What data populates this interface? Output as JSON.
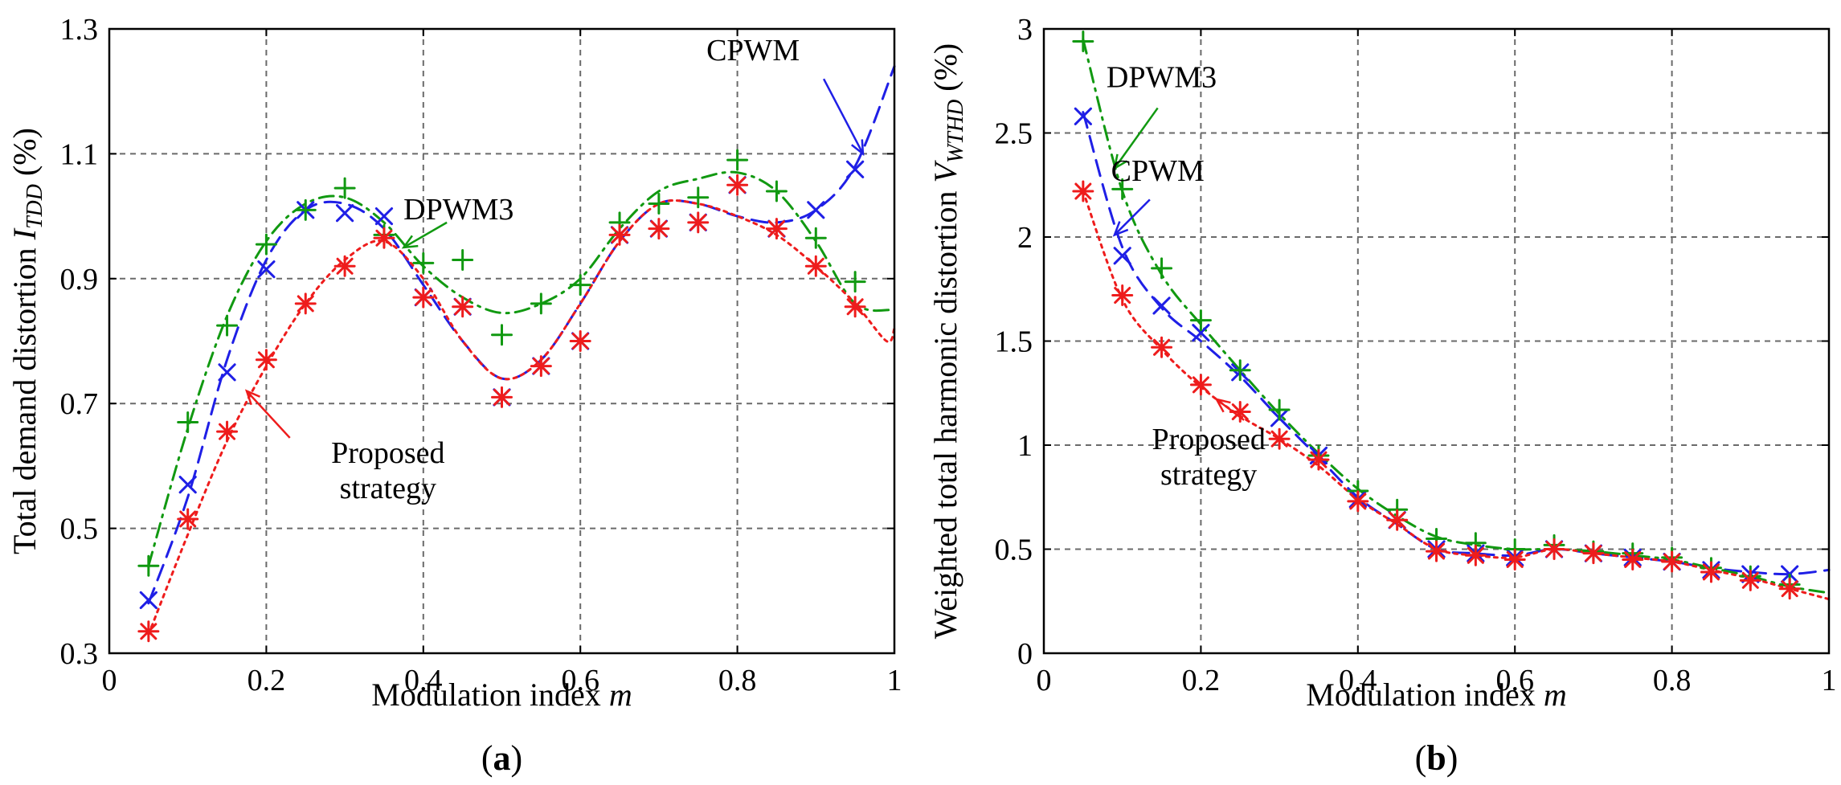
{
  "colors": {
    "cpwm": "#1f1fe6",
    "dpwm3": "#119911",
    "proposed": "#ee1c1c",
    "grid": "#6a6a6a"
  },
  "chart_data": [
    {
      "panel_label": "a",
      "type": "line",
      "xlabel": "Modulation index",
      "xlabel_var": "m",
      "ylabel": "Total demand distortion",
      "ylabel_var": "I",
      "ylabel_sub": "TDD",
      "ylabel_unit": "(%)",
      "xlim": [
        0,
        1
      ],
      "ylim": [
        0.3,
        1.3
      ],
      "xticks": [
        0,
        0.2,
        0.4,
        0.6,
        0.8,
        1
      ],
      "xtick_labels": [
        "0",
        "0.2",
        "0.4",
        "0.6",
        "0.8",
        "1"
      ],
      "yticks": [
        0.3,
        0.5,
        0.7,
        0.9,
        1.1,
        1.3
      ],
      "ytick_labels": [
        "0.3",
        "0.5",
        "0.7",
        "0.9",
        "1.1",
        "1.3"
      ],
      "grid": true,
      "series": [
        {
          "name": "CPWM",
          "color_key": "cpwm",
          "line_style": "dashed",
          "marker": "x",
          "curve_x": [
            0.05,
            0.1,
            0.15,
            0.2,
            0.25,
            0.3,
            0.35,
            0.4,
            0.45,
            0.5,
            0.55,
            0.6,
            0.65,
            0.7,
            0.75,
            0.8,
            0.85,
            0.9,
            0.95,
            1.0
          ],
          "curve_y": [
            0.38,
            0.55,
            0.77,
            0.93,
            1.01,
            1.02,
            0.98,
            0.89,
            0.8,
            0.74,
            0.77,
            0.86,
            0.96,
            1.02,
            1.02,
            1.0,
            0.99,
            1.01,
            1.08,
            1.24
          ],
          "marker_x": [
            0.05,
            0.1,
            0.15,
            0.2,
            0.25,
            0.3,
            0.35,
            0.4,
            0.45,
            0.5,
            0.55,
            0.6,
            0.65,
            0.7,
            0.75,
            0.8,
            0.85,
            0.9,
            0.95
          ],
          "marker_y": [
            0.385,
            0.57,
            0.75,
            0.915,
            1.01,
            1.005,
            1.0,
            0.87,
            0.855,
            0.71,
            0.76,
            0.8,
            0.97,
            0.98,
            0.99,
            1.05,
            0.98,
            1.01,
            1.075
          ]
        },
        {
          "name": "DPWM3",
          "color_key": "dpwm3",
          "line_style": "dashdot",
          "marker": "+",
          "curve_x": [
            0.05,
            0.1,
            0.15,
            0.2,
            0.25,
            0.3,
            0.35,
            0.4,
            0.45,
            0.5,
            0.55,
            0.6,
            0.65,
            0.7,
            0.75,
            0.8,
            0.85,
            0.9,
            0.95,
            1.0
          ],
          "curve_y": [
            0.44,
            0.66,
            0.84,
            0.96,
            1.02,
            1.03,
            0.99,
            0.92,
            0.87,
            0.845,
            0.86,
            0.9,
            0.98,
            1.04,
            1.06,
            1.07,
            1.04,
            0.96,
            0.86,
            0.85
          ],
          "marker_x": [
            0.05,
            0.1,
            0.15,
            0.2,
            0.25,
            0.3,
            0.35,
            0.4,
            0.45,
            0.5,
            0.55,
            0.6,
            0.65,
            0.7,
            0.75,
            0.8,
            0.85,
            0.9,
            0.95
          ],
          "marker_y": [
            0.44,
            0.67,
            0.825,
            0.955,
            1.01,
            1.045,
            0.97,
            0.925,
            0.93,
            0.81,
            0.86,
            0.89,
            0.99,
            1.02,
            1.03,
            1.09,
            1.04,
            0.965,
            0.895
          ]
        },
        {
          "name": "Proposed strategy",
          "color_key": "proposed",
          "line_style": "dotted",
          "marker": "*",
          "curve_x": [
            0.05,
            0.1,
            0.15,
            0.2,
            0.25,
            0.3,
            0.35,
            0.4,
            0.45,
            0.5,
            0.55,
            0.6,
            0.65,
            0.7,
            0.75,
            0.8,
            0.85,
            0.9,
            0.95,
            0.99,
            1.0
          ],
          "curve_y": [
            0.33,
            0.49,
            0.64,
            0.76,
            0.86,
            0.93,
            0.96,
            0.9,
            0.8,
            0.74,
            0.77,
            0.86,
            0.96,
            1.02,
            1.02,
            1.0,
            0.97,
            0.92,
            0.86,
            0.8,
            0.82
          ],
          "marker_x": [
            0.05,
            0.1,
            0.15,
            0.2,
            0.25,
            0.3,
            0.35,
            0.4,
            0.45,
            0.5,
            0.55,
            0.6,
            0.65,
            0.7,
            0.75,
            0.8,
            0.85,
            0.9,
            0.95
          ],
          "marker_y": [
            0.335,
            0.515,
            0.655,
            0.77,
            0.86,
            0.92,
            0.965,
            0.87,
            0.855,
            0.71,
            0.76,
            0.8,
            0.97,
            0.98,
            0.99,
            1.05,
            0.98,
            0.92,
            0.855
          ]
        }
      ],
      "annotations": [
        {
          "lines": [
            "CPWM"
          ],
          "color_key": "cpwm",
          "text_at": [
            0.82,
            1.25
          ],
          "arrow_from": [
            0.91,
            1.22
          ],
          "arrow_to": [
            0.96,
            1.1
          ]
        },
        {
          "lines": [
            "DPWM3"
          ],
          "color_key": "dpwm3",
          "text_at": [
            0.445,
            0.995
          ],
          "arrow_from": [
            0.43,
            0.99
          ],
          "arrow_to": [
            0.375,
            0.95
          ]
        },
        {
          "lines": [
            "Proposed",
            "strategy"
          ],
          "color_key": "proposed",
          "text_at": [
            0.355,
            0.605
          ],
          "arrow_from": [
            0.23,
            0.645
          ],
          "arrow_to": [
            0.175,
            0.72
          ]
        }
      ]
    },
    {
      "panel_label": "b",
      "type": "line",
      "xlabel": "Modulation index",
      "xlabel_var": "m",
      "ylabel": "Weighted total harmonic distortion",
      "ylabel_var": "V",
      "ylabel_sub": "WTHD",
      "ylabel_unit": "(%)",
      "xlim": [
        0,
        1
      ],
      "ylim": [
        0,
        3
      ],
      "xticks": [
        0,
        0.2,
        0.4,
        0.6,
        0.8,
        1
      ],
      "xtick_labels": [
        "0",
        "0.2",
        "0.4",
        "0.6",
        "0.8",
        "1"
      ],
      "yticks": [
        0,
        0.5,
        1,
        1.5,
        2,
        2.5,
        3
      ],
      "ytick_labels": [
        "0",
        "0.5",
        "1",
        "1.5",
        "2",
        "2.5",
        "3"
      ],
      "grid": true,
      "series": [
        {
          "name": "CPWM",
          "color_key": "cpwm",
          "line_style": "dashed",
          "marker": "x",
          "curve_x": [
            0.05,
            0.1,
            0.15,
            0.2,
            0.25,
            0.3,
            0.35,
            0.4,
            0.45,
            0.5,
            0.55,
            0.6,
            0.65,
            0.7,
            0.75,
            0.8,
            0.85,
            0.9,
            0.95,
            1.0
          ],
          "curve_y": [
            2.6,
            1.95,
            1.66,
            1.5,
            1.33,
            1.13,
            0.94,
            0.75,
            0.62,
            0.5,
            0.48,
            0.47,
            0.5,
            0.48,
            0.46,
            0.44,
            0.41,
            0.39,
            0.38,
            0.4
          ],
          "marker_x": [
            0.05,
            0.1,
            0.15,
            0.2,
            0.25,
            0.3,
            0.35,
            0.4,
            0.45,
            0.5,
            0.55,
            0.6,
            0.65,
            0.7,
            0.75,
            0.8,
            0.85,
            0.9,
            0.95
          ],
          "marker_y": [
            2.58,
            1.91,
            1.67,
            1.54,
            1.35,
            1.13,
            0.95,
            0.74,
            0.64,
            0.5,
            0.48,
            0.46,
            0.5,
            0.48,
            0.46,
            0.44,
            0.4,
            0.38,
            0.38
          ]
        },
        {
          "name": "DPWM3",
          "color_key": "dpwm3",
          "line_style": "dashdot",
          "marker": "+",
          "curve_x": [
            0.05,
            0.1,
            0.15,
            0.2,
            0.25,
            0.3,
            0.35,
            0.4,
            0.45,
            0.5,
            0.55,
            0.6,
            0.65,
            0.7,
            0.75,
            0.8,
            0.85,
            0.9,
            0.95,
            1.0
          ],
          "curve_y": [
            2.95,
            2.22,
            1.82,
            1.58,
            1.36,
            1.15,
            0.96,
            0.79,
            0.66,
            0.56,
            0.52,
            0.5,
            0.5,
            0.49,
            0.47,
            0.45,
            0.41,
            0.37,
            0.32,
            0.29
          ],
          "marker_x": [
            0.05,
            0.1,
            0.15,
            0.2,
            0.25,
            0.3,
            0.35,
            0.4,
            0.45,
            0.5,
            0.55,
            0.6,
            0.65,
            0.7,
            0.75,
            0.8,
            0.85,
            0.9,
            0.95
          ],
          "marker_y": [
            2.94,
            2.23,
            1.85,
            1.6,
            1.36,
            1.17,
            0.95,
            0.78,
            0.69,
            0.55,
            0.53,
            0.5,
            0.52,
            0.49,
            0.48,
            0.46,
            0.41,
            0.37,
            0.33
          ]
        },
        {
          "name": "Proposed strategy",
          "color_key": "proposed",
          "line_style": "dotted",
          "marker": "*",
          "curve_x": [
            0.05,
            0.1,
            0.15,
            0.2,
            0.25,
            0.3,
            0.35,
            0.4,
            0.45,
            0.5,
            0.55,
            0.6,
            0.65,
            0.7,
            0.75,
            0.8,
            0.85,
            0.9,
            0.95,
            1.0
          ],
          "curve_y": [
            2.22,
            1.7,
            1.46,
            1.28,
            1.14,
            1.03,
            0.9,
            0.74,
            0.62,
            0.5,
            0.47,
            0.46,
            0.5,
            0.48,
            0.46,
            0.44,
            0.4,
            0.36,
            0.31,
            0.26
          ],
          "marker_x": [
            0.05,
            0.1,
            0.15,
            0.2,
            0.25,
            0.3,
            0.35,
            0.4,
            0.45,
            0.5,
            0.55,
            0.6,
            0.65,
            0.7,
            0.75,
            0.8,
            0.85,
            0.9,
            0.95
          ],
          "marker_y": [
            2.22,
            1.72,
            1.47,
            1.29,
            1.16,
            1.03,
            0.93,
            0.73,
            0.64,
            0.49,
            0.47,
            0.45,
            0.5,
            0.48,
            0.45,
            0.44,
            0.39,
            0.35,
            0.31
          ]
        }
      ],
      "annotations": [
        {
          "lines": [
            "DPWM3"
          ],
          "color_key": "dpwm3",
          "text_at": [
            0.15,
            2.72
          ],
          "arrow_from": [
            0.145,
            2.62
          ],
          "arrow_to": [
            0.09,
            2.33
          ]
        },
        {
          "lines": [
            "CPWM"
          ],
          "color_key": "cpwm",
          "text_at": [
            0.145,
            2.27
          ],
          "arrow_from": [
            0.135,
            2.18
          ],
          "arrow_to": [
            0.09,
            2.01
          ]
        },
        {
          "lines": [
            "Proposed",
            "strategy"
          ],
          "color_key": "proposed",
          "text_at": [
            0.21,
            0.98
          ],
          "arrow_from": [
            0.255,
            1.12
          ],
          "arrow_to": [
            0.22,
            1.22
          ]
        }
      ]
    }
  ]
}
